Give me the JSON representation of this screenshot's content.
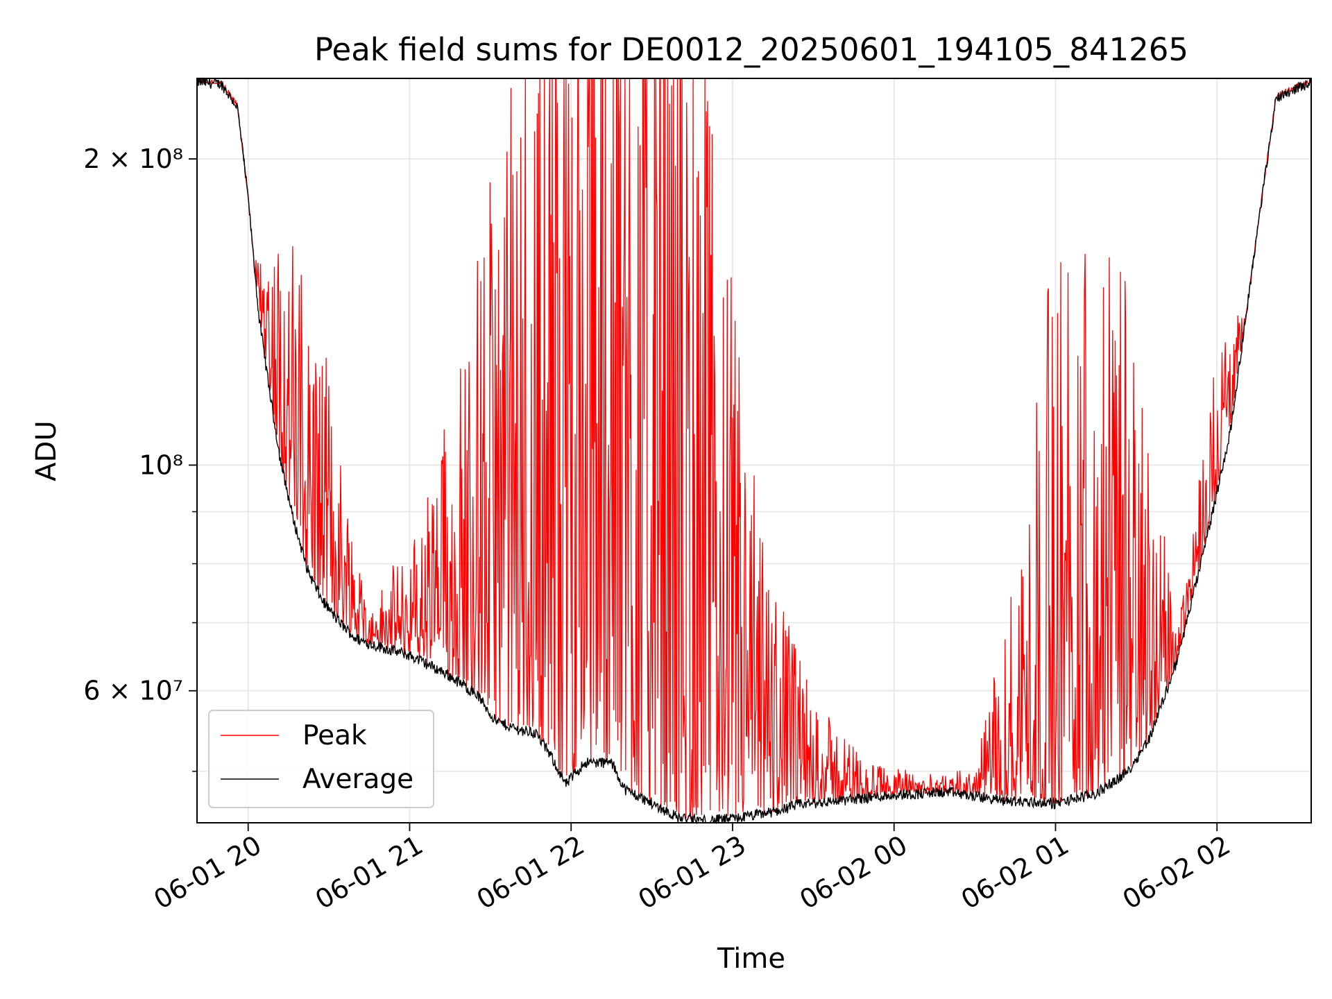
{
  "chart_data": {
    "type": "line",
    "title": "Peak field sums for DE0012_20250601_194105_841265",
    "xlabel": "Time",
    "ylabel": "ADU",
    "y_scale": "log",
    "ylim": [
      44500000,
      240000000
    ],
    "xlim": [
      "2025-06-01 19:41",
      "2025-06-02 02:35"
    ],
    "grid": true,
    "legend_position": "lower-left",
    "x_ticks": [
      {
        "t": "2025-06-01 20:00",
        "label": "06-01 20"
      },
      {
        "t": "2025-06-01 21:00",
        "label": "06-01 21"
      },
      {
        "t": "2025-06-01 22:00",
        "label": "06-01 22"
      },
      {
        "t": "2025-06-01 23:00",
        "label": "06-01 23"
      },
      {
        "t": "2025-06-02 00:00",
        "label": "06-02 00"
      },
      {
        "t": "2025-06-02 01:00",
        "label": "06-02 01"
      },
      {
        "t": "2025-06-02 02:00",
        "label": "06-02 02"
      }
    ],
    "y_ticks_major": [
      {
        "v": 60000000,
        "label": "6 × 10⁷"
      },
      {
        "v": 100000000,
        "label": "10⁸"
      },
      {
        "v": 200000000,
        "label": "2 × 10⁸"
      }
    ],
    "y_ticks_minor": [
      50000000,
      70000000,
      80000000,
      90000000,
      300000000
    ],
    "series": [
      {
        "name": "Average",
        "color": "#000000",
        "x": [
          "2025-06-01 19:41",
          "2025-06-01 19:50",
          "2025-06-01 19:56",
          "2025-06-01 20:00",
          "2025-06-01 20:04",
          "2025-06-01 20:08",
          "2025-06-01 20:12",
          "2025-06-01 20:17",
          "2025-06-01 20:22",
          "2025-06-01 20:27",
          "2025-06-01 20:33",
          "2025-06-01 20:40",
          "2025-06-01 20:47",
          "2025-06-01 21:00",
          "2025-06-01 21:13",
          "2025-06-01 21:25",
          "2025-06-01 21:32",
          "2025-06-01 21:40",
          "2025-06-01 21:47",
          "2025-06-01 21:53",
          "2025-06-01 21:58",
          "2025-06-01 22:05",
          "2025-06-01 22:15",
          "2025-06-01 22:20",
          "2025-06-01 22:30",
          "2025-06-01 22:40",
          "2025-06-01 22:50",
          "2025-06-01 23:00",
          "2025-06-01 23:15",
          "2025-06-01 23:25",
          "2025-06-01 23:40",
          "2025-06-02 00:00",
          "2025-06-02 00:20",
          "2025-06-02 00:40",
          "2025-06-02 01:00",
          "2025-06-02 01:15",
          "2025-06-02 01:27",
          "2025-06-02 01:35",
          "2025-06-02 01:45",
          "2025-06-02 01:55",
          "2025-06-02 02:05",
          "2025-06-02 02:15",
          "2025-06-02 02:22",
          "2025-06-02 02:35"
        ],
        "values": [
          238000000,
          237000000,
          225000000,
          183000000,
          140000000,
          118000000,
          101000000,
          88000000,
          79000000,
          74000000,
          70500000,
          67500000,
          66500000,
          65000000,
          62500000,
          59500000,
          56000000,
          55000000,
          54500000,
          51500000,
          48500000,
          51000000,
          51000000,
          48000000,
          46500000,
          45000000,
          44700000,
          44900000,
          45600000,
          46400000,
          46800000,
          47400000,
          47700000,
          46800000,
          46500000,
          47500000,
          50000000,
          54000000,
          64000000,
          82000000,
          108000000,
          170000000,
          230000000,
          238000000
        ]
      },
      {
        "name": "Peak",
        "color": "#ff0000",
        "x": [
          "2025-06-01 19:41",
          "2025-06-01 20:45",
          "2025-06-01 21:05",
          "2025-06-01 21:30",
          "2025-06-01 21:50",
          "2025-06-01 22:10",
          "2025-06-01 22:30",
          "2025-06-01 22:50",
          "2025-06-01 23:10",
          "2025-06-01 23:30",
          "2025-06-01 23:50",
          "2025-06-02 00:10",
          "2025-06-02 00:30",
          "2025-06-02 00:45",
          "2025-06-02 01:00",
          "2025-06-02 01:15",
          "2025-06-02 01:30",
          "2025-06-02 01:45",
          "2025-06-02 02:00",
          "2025-06-02 02:35"
        ],
        "values": [
          238000000,
          69000000,
          75000000,
          100000000,
          125000000,
          170000000,
          140000000,
          100000000,
          62000000,
          52000000,
          49000000,
          48500000,
          48500000,
          60000000,
          85000000,
          95000000,
          80000000,
          66000000,
          110000000,
          238000000
        ]
      }
    ]
  }
}
